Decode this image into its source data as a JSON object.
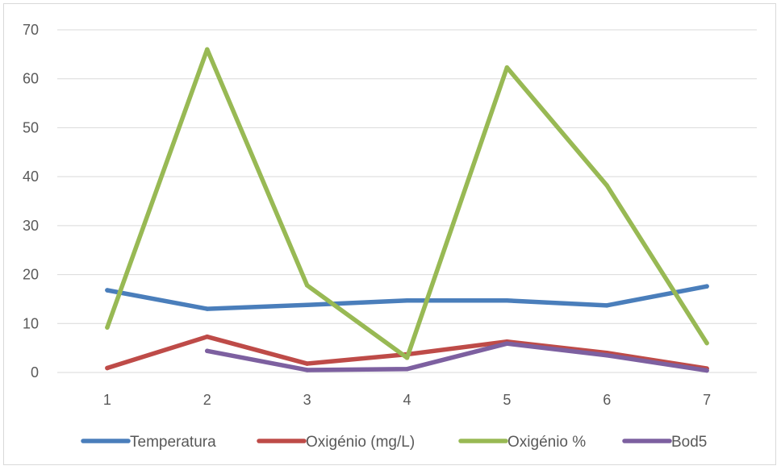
{
  "chart_data": {
    "type": "line",
    "x": [
      1,
      2,
      3,
      4,
      5,
      6,
      7
    ],
    "ylim": [
      0,
      70
    ],
    "yticks": [
      0,
      10,
      20,
      30,
      40,
      50,
      60,
      70
    ],
    "grid": true,
    "legend_position": "bottom",
    "series": [
      {
        "name": "Temperatura",
        "color": "#4a7ebb",
        "values": [
          16.8,
          13.0,
          13.8,
          14.7,
          14.7,
          13.7,
          17.6
        ]
      },
      {
        "name": "Oxigénio (mg/L)",
        "color": "#be4b48",
        "values": [
          0.9,
          7.3,
          1.8,
          3.7,
          6.3,
          4.0,
          0.8
        ]
      },
      {
        "name": "Oxigénio %",
        "color": "#98b954",
        "values": [
          9.2,
          66.0,
          17.8,
          3.0,
          62.3,
          38.2,
          6.0
        ]
      },
      {
        "name": "Bod5",
        "color": "#7d60a0",
        "values": [
          null,
          4.4,
          0.5,
          0.7,
          5.9,
          3.5,
          0.4
        ]
      }
    ]
  }
}
